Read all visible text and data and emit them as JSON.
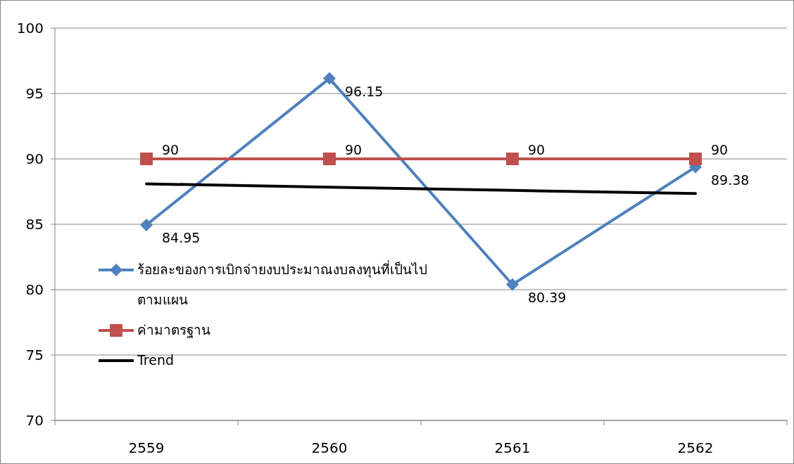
{
  "chart_data": {
    "type": "line",
    "categories": [
      "2559",
      "2560",
      "2561",
      "2562"
    ],
    "series": [
      {
        "name": "ร้อยละของการเบิกจ่ายงบประมาณงบลงทุนที่เป็นไปตามแผน",
        "color": "#4f81bd",
        "marker": "diamond",
        "values": [
          84.95,
          96.15,
          80.39,
          89.38
        ],
        "value_labels": [
          "84.95",
          "96.15",
          "80.39",
          "89.38"
        ]
      },
      {
        "name": "ค่ามาตรฐาน",
        "color": "#c0504d",
        "marker": "square",
        "values": [
          90,
          90,
          90,
          90
        ],
        "value_labels": [
          "90",
          "90",
          "90",
          "90"
        ]
      },
      {
        "name": "Trend",
        "color": "#000000",
        "marker": "none",
        "values": [
          88.09,
          87.84,
          87.59,
          87.35
        ]
      }
    ],
    "ylim": [
      70,
      100
    ],
    "yticks": [
      70,
      75,
      80,
      85,
      90,
      95,
      100
    ],
    "grid": "y",
    "legend": "left"
  }
}
